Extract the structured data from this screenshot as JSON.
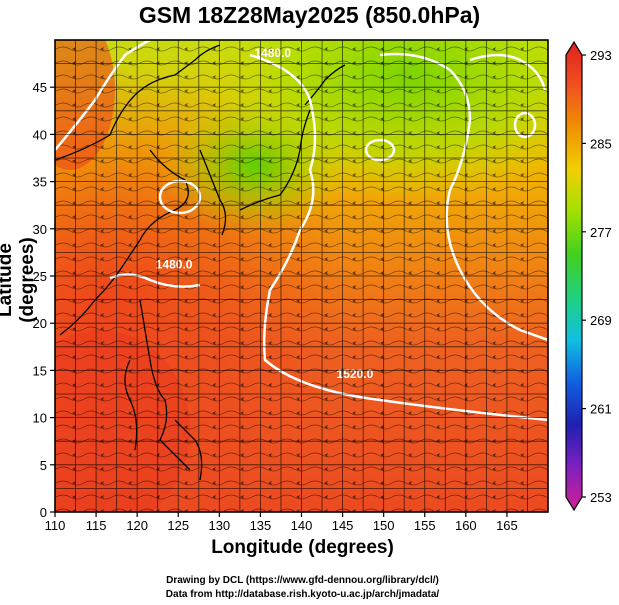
{
  "title": "GSM 18Z28May2025 (850.0hPa)",
  "x_axis": {
    "label": "Longitude (degrees)",
    "range": [
      110,
      170
    ],
    "ticks": [
      110,
      115,
      120,
      125,
      130,
      135,
      140,
      145,
      150,
      155,
      160,
      165
    ]
  },
  "y_axis": {
    "label": "Latitude  (degrees)",
    "range": [
      0,
      50
    ],
    "ticks": [
      0,
      5,
      10,
      15,
      20,
      25,
      30,
      35,
      40,
      45
    ]
  },
  "colorbar": {
    "ticks": [
      293,
      285,
      277,
      269,
      261,
      253
    ],
    "range": [
      253,
      293
    ],
    "colors": [
      "#d02090",
      "#8020c0",
      "#2020b0",
      "#1060e0",
      "#10c0e0",
      "#20d080",
      "#40d020",
      "#a0e000",
      "#f0d000",
      "#f09000",
      "#f05020",
      "#e02020"
    ]
  },
  "contours": [
    {
      "label": "1480.0",
      "label_lon": 136.5,
      "label_lat": 48.2
    },
    {
      "label": "1480.0",
      "label_lon": 124.5,
      "label_lat": 25.8
    },
    {
      "label": "1520.0",
      "label_lon": 146.5,
      "label_lat": 14.2
    }
  ],
  "credits": {
    "line1": "Drawing by DCL (https://www.gfd-dennou.org/library/dcl/)",
    "line2": "Data from http://database.rish.kyoto-u.ac.jp/arch/jmadata/"
  }
}
